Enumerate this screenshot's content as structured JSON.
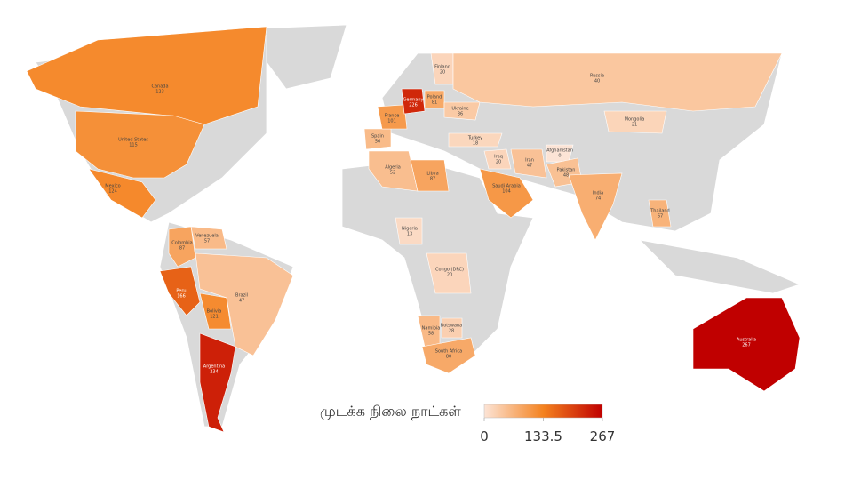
{
  "map": {
    "countries": [
      {
        "name": "Canada",
        "value": 123
      },
      {
        "name": "United States",
        "value": 115
      },
      {
        "name": "Mexico",
        "value": 124
      },
      {
        "name": "Venezuela",
        "value": 57
      },
      {
        "name": "Colombia",
        "value": 87
      },
      {
        "name": "Peru",
        "value": 166
      },
      {
        "name": "Bolivia",
        "value": 121
      },
      {
        "name": "Brazil",
        "value": 47
      },
      {
        "name": "Argentina",
        "value": 234
      },
      {
        "name": "Spain",
        "value": 56
      },
      {
        "name": "France",
        "value": 101
      },
      {
        "name": "Germany",
        "value": 226
      },
      {
        "name": "Poland",
        "value": 81
      },
      {
        "name": "Ukraine",
        "value": 36
      },
      {
        "name": "Finland",
        "value": 20
      },
      {
        "name": "Russia",
        "value": 40
      },
      {
        "name": "Mongolia",
        "value": 21
      },
      {
        "name": "Turkey",
        "value": 18
      },
      {
        "name": "Iraq",
        "value": 20
      },
      {
        "name": "Iran",
        "value": 47
      },
      {
        "name": "Afghanistan",
        "value": 0
      },
      {
        "name": "Pakistan",
        "value": 48
      },
      {
        "name": "India",
        "value": 74
      },
      {
        "name": "Thailand",
        "value": 67
      },
      {
        "name": "Algeria",
        "value": 52
      },
      {
        "name": "Libya",
        "value": 87
      },
      {
        "name": "Saudi Arabia",
        "value": 104
      },
      {
        "name": "Nigeria",
        "value": 13
      },
      {
        "name": "Congo (DRC)",
        "value": 20
      },
      {
        "name": "Namibia",
        "value": 58
      },
      {
        "name": "Botswana",
        "value": 28
      },
      {
        "name": "South Africa",
        "value": 80
      },
      {
        "name": "Australia",
        "value": 267
      }
    ],
    "legend": {
      "title": "முடக்க நிலை நாட்கள்",
      "range": [
        0,
        267
      ],
      "ticks": [
        0,
        133.5,
        267
      ],
      "colors": [
        "#fce4d6",
        "#f4821f",
        "#c00000"
      ]
    },
    "no_data_color": "#d9d9d9"
  }
}
